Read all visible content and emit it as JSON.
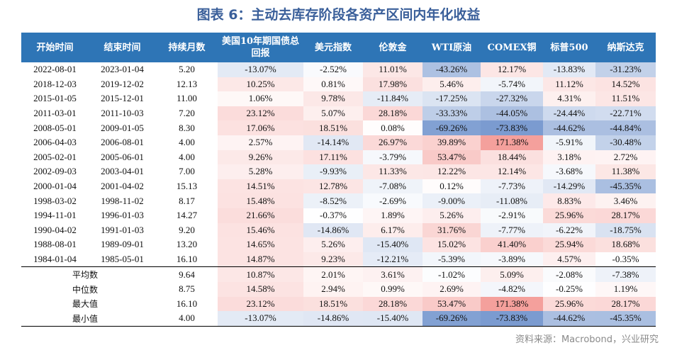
{
  "title": "图表 6：主动去库存阶段各资产区间内年化收益",
  "source": "资料来源：Macrobond，兴业研究",
  "chart_data": {
    "type": "table",
    "columns": [
      "开始时间",
      "结束时间",
      "持续月数",
      "美国10年期国债总回报",
      "美元指数",
      "伦敦金",
      "WTI原油",
      "COMEX铜",
      "标普500",
      "纳斯达克"
    ],
    "rows": [
      [
        "2022-08-01",
        "2023-01-04",
        "5.20",
        "-13.07%",
        "-2.52%",
        "11.01%",
        "-43.26%",
        "12.17%",
        "-13.83%",
        "-31.23%"
      ],
      [
        "2018-12-03",
        "2019-12-02",
        "12.13",
        "10.25%",
        "0.81%",
        "17.98%",
        "5.46%",
        "-5.74%",
        "11.12%",
        "14.52%"
      ],
      [
        "2015-01-05",
        "2015-12-01",
        "11.00",
        "1.06%",
        "9.78%",
        "-11.84%",
        "-17.25%",
        "-27.32%",
        "4.31%",
        "11.51%"
      ],
      [
        "2011-03-01",
        "2011-10-03",
        "7.20",
        "23.12%",
        "5.07%",
        "28.18%",
        "-33.33%",
        "-44.05%",
        "-24.44%",
        "-22.71%"
      ],
      [
        "2008-05-01",
        "2009-01-05",
        "8.30",
        "17.06%",
        "18.51%",
        "0.08%",
        "-69.26%",
        "-73.83%",
        "-44.62%",
        "-44.84%"
      ],
      [
        "2006-04-03",
        "2006-08-01",
        "4.00",
        "2.57%",
        "-14.14%",
        "26.97%",
        "39.89%",
        "171.38%",
        "-5.91%",
        "-30.48%"
      ],
      [
        "2005-02-01",
        "2005-06-01",
        "4.00",
        "9.26%",
        "17.11%",
        "-3.79%",
        "53.47%",
        "18.44%",
        "3.18%",
        "2.72%"
      ],
      [
        "2002-09-03",
        "2003-04-01",
        "7.00",
        "5.28%",
        "-9.93%",
        "11.33%",
        "12.22%",
        "12.14%",
        "-3.68%",
        "11.38%"
      ],
      [
        "2000-01-04",
        "2001-04-02",
        "15.13",
        "14.51%",
        "12.78%",
        "-7.08%",
        "0.12%",
        "-7.73%",
        "-14.29%",
        "-45.35%"
      ],
      [
        "1998-03-02",
        "1998-11-02",
        "8.17",
        "15.48%",
        "-8.52%",
        "-2.69%",
        "-9.00%",
        "-11.08%",
        "8.83%",
        "3.46%"
      ],
      [
        "1994-11-01",
        "1996-01-03",
        "14.27",
        "21.66%",
        "-0.37%",
        "1.89%",
        "5.26%",
        "-2.91%",
        "25.96%",
        "28.17%"
      ],
      [
        "1990-04-02",
        "1991-01-03",
        "9.20",
        "15.46%",
        "-14.86%",
        "6.17%",
        "31.76%",
        "-7.77%",
        "-6.22%",
        "-18.75%"
      ],
      [
        "1988-08-01",
        "1989-09-01",
        "13.20",
        "14.65%",
        "5.26%",
        "-15.40%",
        "15.02%",
        "41.40%",
        "25.94%",
        "18.68%"
      ],
      [
        "1984-01-04",
        "1985-05-01",
        "16.10",
        "14.87%",
        "9.23%",
        "-12.21%",
        "-5.39%",
        "-3.89%",
        "4.57%",
        "-0.35%"
      ]
    ],
    "summary": [
      [
        "平均数",
        "9.64",
        "10.87%",
        "2.01%",
        "3.61%",
        "-1.02%",
        "5.09%",
        "-2.08%",
        "-7.38%"
      ],
      [
        "中位数",
        "8.75",
        "14.58%",
        "2.94%",
        "0.99%",
        "2.69%",
        "-4.82%",
        "-0.25%",
        "1.19%"
      ],
      [
        "最大值",
        "16.10",
        "23.12%",
        "18.51%",
        "28.18%",
        "53.47%",
        "171.38%",
        "25.96%",
        "28.17%"
      ],
      [
        "最小值",
        "4.00",
        "-13.07%",
        "-14.86%",
        "-15.40%",
        "-69.26%",
        "-73.83%",
        "-44.62%",
        "-45.35%"
      ]
    ],
    "colors": {
      "header": "#2e75b6",
      "positive": "#f4a09c",
      "negative": "#7b9bd0"
    }
  }
}
